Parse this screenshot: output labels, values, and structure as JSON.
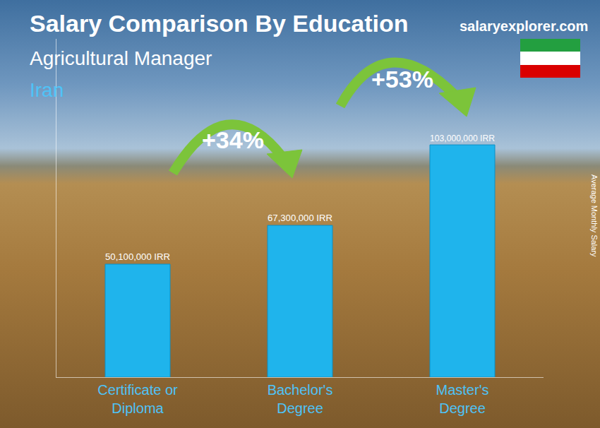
{
  "chart_data": {
    "type": "bar",
    "title": "Salary Comparison By Education",
    "subtitle": "Agricultural Manager",
    "country": "Iran",
    "source": "salaryexplorer.com",
    "y_label": "Average Monthly Salary",
    "categories": [
      "Certificate or Diploma",
      "Bachelor's Degree",
      "Master's Degree"
    ],
    "values": [
      50100000,
      67300000,
      103000000
    ],
    "value_labels": [
      "50,100,000 IRR",
      "67,300,000 IRR",
      "103,000,000 IRR"
    ],
    "data_labels": true,
    "annotations": [
      "+34%",
      "+53%"
    ],
    "color": "#1fb4ec",
    "ylim": [
      0,
      150000000
    ],
    "tick_labels": "x",
    "grid": false
  }
}
